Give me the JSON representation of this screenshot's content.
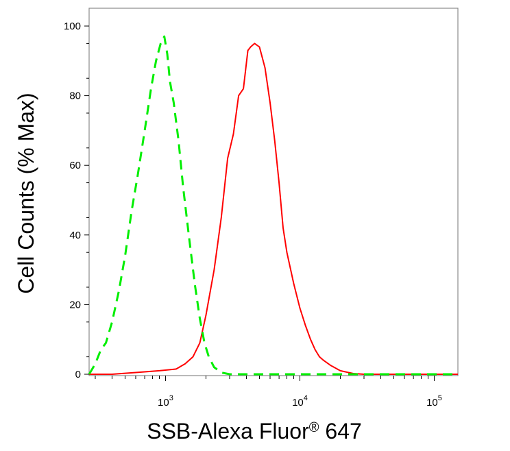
{
  "chart_data": {
    "type": "histogram",
    "xlabel": "SSB-Alexa Fluor® 647",
    "ylabel": "Cell Counts (% Max)",
    "xscale": "log",
    "xlim": [
      270,
      150000
    ],
    "ylim": [
      0,
      104
    ],
    "y_ticks": [
      {
        "value": 0,
        "label": "0"
      },
      {
        "value": 20,
        "label": "20"
      },
      {
        "value": 40,
        "label": "40"
      },
      {
        "value": 60,
        "label": "60"
      },
      {
        "value": 80,
        "label": "80"
      },
      {
        "value": 100,
        "label": "100"
      }
    ],
    "x_ticks": [
      {
        "value": 1000,
        "base": "10",
        "exp": "3"
      },
      {
        "value": 10000,
        "base": "10",
        "exp": "4"
      },
      {
        "value": 100000,
        "base": "10",
        "exp": "5"
      }
    ],
    "series": [
      {
        "color": "#ff0000",
        "style": "solid",
        "x": [
          270,
          400,
          600,
          900,
          1200,
          1400,
          1600,
          1800,
          2000,
          2300,
          2600,
          2900,
          3200,
          3500,
          3800,
          4100,
          4300,
          4600,
          5000,
          5500,
          6000,
          6500,
          7000,
          7500,
          8000,
          9000,
          10000,
          11000,
          12000,
          13000,
          14000,
          15000,
          17000,
          20000,
          25000,
          30000,
          50000,
          100000,
          150000
        ],
        "y": [
          0,
          0,
          0.5,
          1,
          1.5,
          3,
          5,
          9,
          17,
          30,
          45,
          62,
          69,
          80,
          82,
          93,
          94,
          95,
          94,
          88,
          78,
          67,
          55,
          42,
          35,
          26,
          19,
          14,
          10,
          7,
          5,
          4,
          2.5,
          1,
          0.2,
          0,
          0,
          0,
          0
        ]
      },
      {
        "color": "#00ee00",
        "style": "dashed",
        "x": [
          270,
          300,
          330,
          360,
          400,
          450,
          500,
          560,
          620,
          700,
          780,
          850,
          920,
          980,
          1030,
          1080,
          1150,
          1250,
          1350,
          1500,
          1650,
          1800,
          1950,
          2100,
          2300,
          2600,
          3000,
          5000,
          150000
        ],
        "y": [
          0,
          3,
          7,
          9,
          15,
          24,
          34,
          47,
          57,
          70,
          82,
          90,
          95,
          97,
          92,
          84,
          78,
          67,
          54,
          39,
          26,
          16,
          9,
          5,
          2,
          0.5,
          0,
          0,
          0
        ]
      }
    ]
  }
}
